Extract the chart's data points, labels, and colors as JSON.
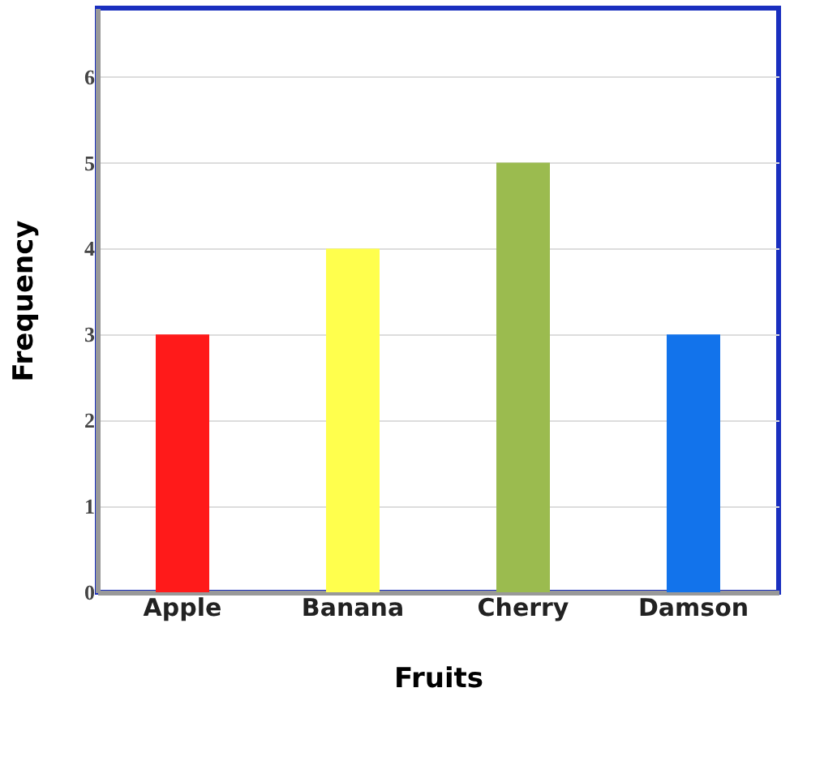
{
  "chart_data": {
    "type": "bar",
    "xlabel": "Fruits",
    "ylabel": "Frequency",
    "categories": [
      "Apple",
      "Banana",
      "Cherry",
      "Damson"
    ],
    "values": [
      3,
      4,
      5,
      3
    ],
    "colors": [
      "#ff1a1a",
      "#ffff4d",
      "#9bbb4f",
      "#1273eb"
    ],
    "ylim": [
      0,
      6.8
    ],
    "yticks": [
      0,
      1,
      2,
      3,
      4,
      5,
      6
    ],
    "grid": "y"
  }
}
